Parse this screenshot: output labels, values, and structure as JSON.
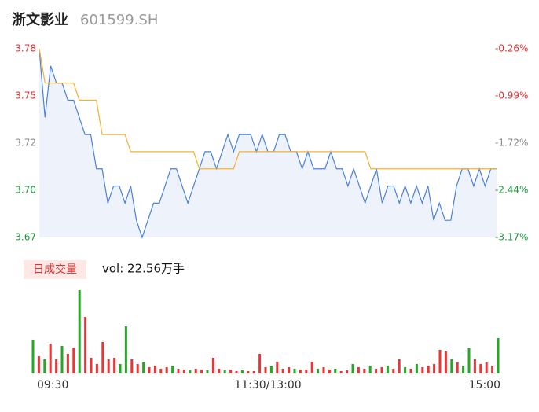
{
  "header": {
    "title": "浙文影业",
    "code": "601599.SH"
  },
  "volume_panel": {
    "button": "日成交量",
    "volume_text": "vol: 22.56万手"
  },
  "chart_data": [
    {
      "type": "line",
      "x": [
        0,
        3,
        6,
        9,
        12,
        15,
        18,
        21,
        24,
        27,
        30,
        33,
        36,
        39,
        42,
        45,
        48,
        51,
        54,
        57,
        60,
        63,
        66,
        69,
        72,
        75,
        78,
        81,
        84,
        87,
        90,
        93,
        96,
        99,
        102,
        105,
        108,
        111,
        114,
        117,
        120,
        123,
        126,
        129,
        132,
        135,
        138,
        141,
        144,
        147,
        150,
        153,
        156,
        159,
        162,
        165,
        168,
        171,
        174,
        177,
        180,
        183,
        186,
        189,
        192,
        195,
        198,
        201,
        204,
        207,
        210,
        213,
        216,
        219,
        222,
        225,
        228,
        231,
        234,
        237,
        240
      ],
      "xlim": [
        0,
        240
      ],
      "xticks": [
        {
          "value": 0,
          "label": "09:30"
        },
        {
          "value": 120,
          "label": "11:30/13:00"
        },
        {
          "value": 240,
          "label": "15:00"
        }
      ],
      "series": [
        {
          "color": "#4a80e0",
          "fill": "#eef3fb",
          "values": [
            3.78,
            3.74,
            3.77,
            3.76,
            3.76,
            3.75,
            3.75,
            3.74,
            3.73,
            3.73,
            3.71,
            3.71,
            3.69,
            3.7,
            3.7,
            3.69,
            3.7,
            3.68,
            3.67,
            3.68,
            3.69,
            3.69,
            3.7,
            3.71,
            3.71,
            3.7,
            3.69,
            3.7,
            3.71,
            3.72,
            3.72,
            3.71,
            3.72,
            3.73,
            3.72,
            3.73,
            3.73,
            3.73,
            3.72,
            3.73,
            3.72,
            3.72,
            3.73,
            3.73,
            3.72,
            3.72,
            3.71,
            3.72,
            3.71,
            3.71,
            3.71,
            3.72,
            3.71,
            3.71,
            3.7,
            3.71,
            3.7,
            3.69,
            3.7,
            3.71,
            3.69,
            3.7,
            3.7,
            3.69,
            3.7,
            3.69,
            3.7,
            3.69,
            3.7,
            3.68,
            3.69,
            3.68,
            3.68,
            3.7,
            3.71,
            3.71,
            3.7,
            3.71,
            3.7,
            3.71,
            3.71
          ]
        },
        {
          "color": "#f2b233",
          "values": [
            3.78,
            3.76,
            3.76,
            3.76,
            3.76,
            3.76,
            3.76,
            3.75,
            3.75,
            3.75,
            3.75,
            3.73,
            3.73,
            3.73,
            3.73,
            3.73,
            3.72,
            3.72,
            3.72,
            3.72,
            3.72,
            3.72,
            3.72,
            3.72,
            3.72,
            3.72,
            3.72,
            3.72,
            3.71,
            3.71,
            3.71,
            3.71,
            3.71,
            3.71,
            3.71,
            3.72,
            3.72,
            3.72,
            3.72,
            3.72,
            3.72,
            3.72,
            3.72,
            3.72,
            3.72,
            3.72,
            3.72,
            3.72,
            3.72,
            3.72,
            3.72,
            3.72,
            3.72,
            3.72,
            3.72,
            3.72,
            3.72,
            3.72,
            3.71,
            3.71,
            3.71,
            3.71,
            3.71,
            3.71,
            3.71,
            3.71,
            3.71,
            3.71,
            3.71,
            3.71,
            3.71,
            3.71,
            3.71,
            3.71,
            3.71,
            3.71,
            3.71,
            3.71,
            3.71,
            3.71,
            3.71
          ]
        }
      ],
      "ylim": [
        3.67,
        3.78
      ],
      "yticks": [
        3.78,
        {
          "value": 3.7525,
          "label": "3.75"
        },
        {
          "value": 3.7249,
          "label": "3.72"
        },
        {
          "value": 3.6975,
          "label": "3.70"
        },
        3.67
      ],
      "y2lim": [
        -3.17,
        -0.26
      ],
      "y2ticks": [
        {
          "value": -0.26,
          "label": "-0.26%"
        },
        {
          "value": -0.9875,
          "label": "-0.99%"
        },
        {
          "value": -1.7151,
          "label": "-1.72%"
        },
        {
          "value": -2.4425,
          "label": "-2.44%"
        },
        {
          "value": -3.17,
          "label": "-3.17%"
        }
      ],
      "tick_colors": [
        "#e03030",
        "#e03030",
        "#888888",
        "#1a9a3a",
        "#1a9a3a"
      ]
    },
    {
      "type": "bar",
      "ylim": [
        0,
        106
      ],
      "values": [
        43,
        22,
        18,
        38,
        18,
        35,
        25,
        33,
        106,
        72,
        20,
        12,
        40,
        18,
        20,
        12,
        60,
        18,
        12,
        14,
        8,
        10,
        6,
        8,
        10,
        6,
        5,
        4,
        6,
        5,
        4,
        20,
        6,
        4,
        5,
        3,
        4,
        3,
        3,
        25,
        8,
        10,
        15,
        6,
        8,
        6,
        5,
        5,
        15,
        6,
        8,
        5,
        6,
        3,
        4,
        12,
        8,
        6,
        10,
        6,
        8,
        10,
        6,
        18,
        8,
        6,
        12,
        8,
        10,
        12,
        30,
        28,
        18,
        14,
        10,
        32,
        18,
        12,
        14,
        10,
        45
      ],
      "colors": [
        "#2a2",
        "#e33",
        "#2a2",
        "#e33",
        "#e33",
        "#2a2",
        "#e33",
        "#e33",
        "#2a2",
        "#e33",
        "#e33",
        "#e33",
        "#e33",
        "#e33",
        "#e33",
        "#2a2",
        "#2a2",
        "#e33",
        "#e33",
        "#2a2",
        "#e33",
        "#e33",
        "#e33",
        "#e33",
        "#2a2",
        "#e33",
        "#e33",
        "#2a2",
        "#e33",
        "#e33",
        "#2a2",
        "#e33",
        "#e33",
        "#2a2",
        "#e33",
        "#e33",
        "#2a2",
        "#e33",
        "#e33",
        "#e33",
        "#e33",
        "#2a2",
        "#e33",
        "#e33",
        "#e33",
        "#2a2",
        "#e33",
        "#e33",
        "#e33",
        "#2a2",
        "#e33",
        "#e33",
        "#2a2",
        "#e33",
        "#e33",
        "#2a2",
        "#e33",
        "#e33",
        "#2a2",
        "#e33",
        "#e33",
        "#2a2",
        "#e33",
        "#e33",
        "#2a2",
        "#e33",
        "#2a2",
        "#e33",
        "#e33",
        "#e33",
        "#e33",
        "#e33",
        "#2a2",
        "#e33",
        "#2a2",
        "#2a2",
        "#e33",
        "#e33",
        "#e33",
        "#e33",
        "#2a2"
      ]
    }
  ]
}
